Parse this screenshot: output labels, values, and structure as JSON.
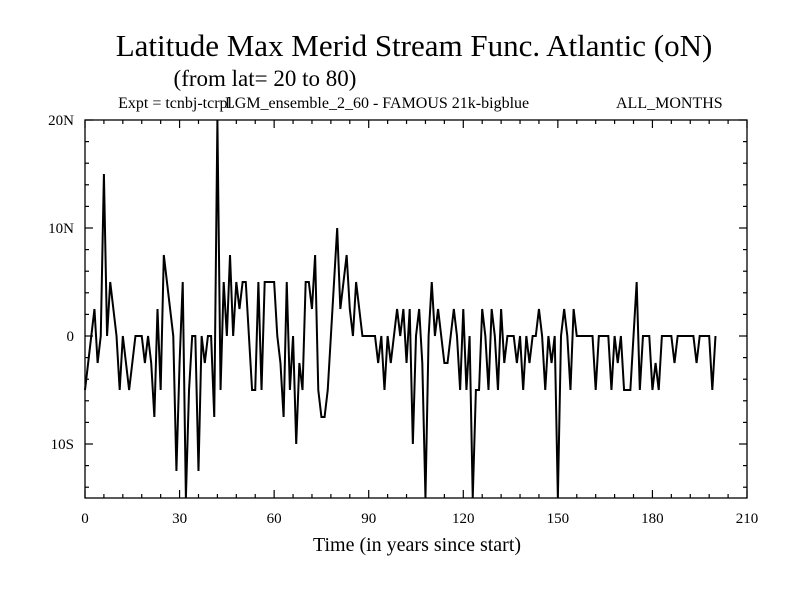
{
  "chart_data": {
    "type": "line",
    "title": "Latitude Max Merid Stream Func. Atlantic (oN)",
    "subtitle": "(from lat= 20 to 80)",
    "experiment": "Expt = tcnbj-tcrpl",
    "experiment_name": "LGM_ensemble_2_60 - FAMOUS 21k-bigblue",
    "season": "ALL_MONTHS",
    "xlabel": "Time (in years since start)",
    "ylabel": "",
    "xlim": [
      0,
      210
    ],
    "ylim": [
      -15,
      20
    ],
    "xticks": [
      0,
      30,
      60,
      90,
      120,
      150,
      180,
      210
    ],
    "xtick_labels": [
      "0",
      "30",
      "60",
      "90",
      "120",
      "150",
      "180",
      "210"
    ],
    "yticks": [
      -10,
      0,
      10,
      20
    ],
    "ytick_labels": [
      "10S",
      "0",
      "10N",
      "20N"
    ],
    "grid": false,
    "series": [
      {
        "name": "ALL_MONTHS",
        "color": "#000000",
        "x": [
          0,
          1,
          2,
          3,
          4,
          5,
          6,
          7,
          8,
          9,
          10,
          11,
          12,
          13,
          14,
          15,
          16,
          17,
          18,
          19,
          20,
          21,
          22,
          23,
          24,
          25,
          26,
          27,
          28,
          29,
          30,
          31,
          32,
          33,
          34,
          35,
          36,
          37,
          38,
          39,
          40,
          41,
          42,
          43,
          44,
          45,
          46,
          47,
          48,
          49,
          50,
          51,
          52,
          53,
          54,
          55,
          56,
          57,
          58,
          59,
          60,
          61,
          62,
          63,
          64,
          65,
          66,
          67,
          68,
          69,
          70,
          71,
          72,
          73,
          74,
          75,
          76,
          77,
          78,
          79,
          80,
          81,
          82,
          83,
          84,
          85,
          86,
          87,
          88,
          89,
          90,
          91,
          92,
          93,
          94,
          95,
          96,
          97,
          98,
          99,
          100,
          101,
          102,
          103,
          104,
          105,
          106,
          107,
          108,
          109,
          110,
          111,
          112,
          113,
          114,
          115,
          116,
          117,
          118,
          119,
          120,
          121,
          122,
          123,
          124,
          125,
          126,
          127,
          128,
          129,
          130,
          131,
          132,
          133,
          134,
          135,
          136,
          137,
          138,
          139,
          140,
          141,
          142,
          143,
          144,
          145,
          146,
          147,
          148,
          149,
          150,
          151,
          152,
          153,
          154,
          155,
          156,
          157,
          158,
          159,
          160,
          161,
          162,
          163,
          164,
          165,
          166,
          167,
          168,
          169,
          170,
          171,
          172,
          173,
          174,
          175,
          176,
          177,
          178,
          179,
          180,
          181,
          182,
          183,
          184,
          185,
          186,
          187,
          188,
          189,
          190,
          191,
          192,
          193,
          194,
          195,
          196,
          197,
          198,
          199,
          200
        ],
        "y": [
          -5,
          -2.5,
          0,
          2.5,
          -2.5,
          0,
          15,
          0,
          5,
          2.5,
          0,
          -5,
          0,
          -2.5,
          -5,
          -2.5,
          0,
          0,
          0,
          -2.5,
          0,
          -2.5,
          -7.5,
          2.5,
          -5,
          7.5,
          5,
          2.5,
          0,
          -12.5,
          -2.5,
          5,
          -15,
          -5,
          0,
          0,
          -12.5,
          0,
          -2.5,
          0,
          0,
          -7.5,
          20,
          -5,
          5,
          0,
          7.5,
          0,
          5,
          2.5,
          5,
          5,
          0,
          -5,
          -5,
          5,
          -5,
          5,
          5,
          5,
          5,
          0,
          -2.5,
          -7.5,
          5,
          -5,
          0,
          -10,
          -2.5,
          -5,
          5,
          5,
          2.5,
          7.5,
          -5,
          -7.5,
          -7.5,
          -5,
          0,
          5,
          10,
          2.5,
          5,
          7.5,
          2.5,
          0,
          5,
          2.5,
          0,
          0,
          0,
          0,
          0,
          -2.5,
          0,
          -5,
          0,
          -2.5,
          0,
          2.5,
          0,
          2.5,
          -2.5,
          2.5,
          -10,
          0,
          2.5,
          -2.5,
          -15,
          0,
          5,
          0,
          2.5,
          0,
          -2.5,
          -2.5,
          0,
          2.5,
          0,
          -5,
          2.5,
          -5,
          0,
          -15,
          -5,
          -5,
          2.5,
          0,
          -5,
          2.5,
          0,
          -5,
          2.5,
          -2.5,
          0,
          0,
          0,
          -2.5,
          0,
          -5,
          0,
          -2.5,
          0,
          0,
          2.5,
          0,
          -5,
          0,
          -2.5,
          0,
          -15,
          0,
          2.5,
          0,
          -5,
          2.5,
          0,
          0,
          0,
          0,
          0,
          0,
          -5,
          0,
          0,
          0,
          0,
          -5,
          0,
          -2.5,
          0,
          -5,
          -5,
          -5,
          0,
          5,
          -5,
          0,
          0,
          0,
          -5,
          -2.5,
          -5,
          0,
          0,
          0,
          0,
          -2.5,
          0,
          0,
          0,
          0,
          0,
          0,
          -2.5,
          0,
          0,
          0,
          0,
          -5,
          0
        ]
      }
    ]
  }
}
